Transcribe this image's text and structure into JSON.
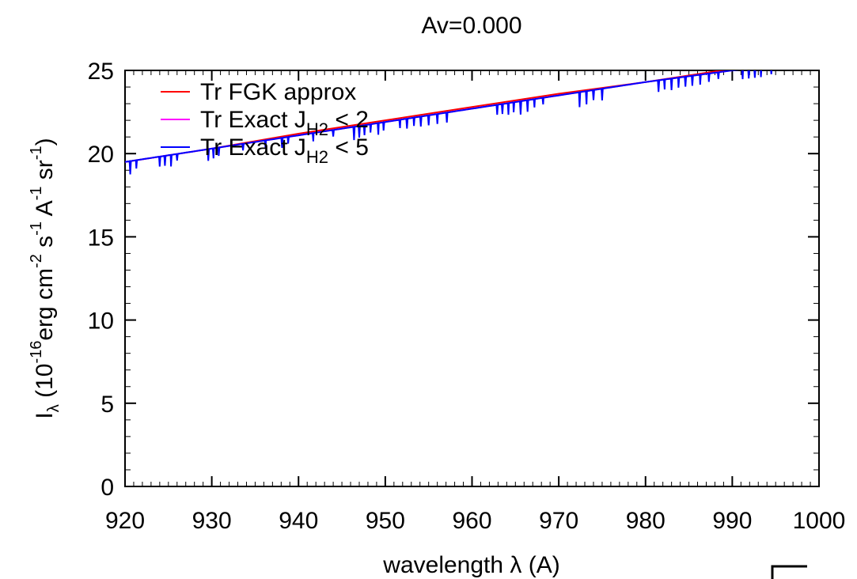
{
  "chart_data": {
    "type": "line",
    "title": "Av=0.000",
    "xlabel": "wavelength λ (A)",
    "ylabel": {
      "main": "I",
      "sub": "λ",
      "text1": " (10",
      "sup1": "-16",
      "text2": "erg cm",
      "sup2": "-2",
      "text3": " s",
      "sup3": "-1",
      "text4": " A",
      "sup4": "-1",
      "text5": " sr",
      "sup5": "-1",
      "text6": ")"
    },
    "xlim": [
      920,
      1000
    ],
    "ylim": [
      0,
      25
    ],
    "xticks": [
      "920",
      "930",
      "940",
      "950",
      "960",
      "970",
      "980",
      "990",
      "1000"
    ],
    "yticks": [
      "0",
      "5",
      "10",
      "15",
      "20",
      "25"
    ],
    "legend_position": "top-left",
    "grid": false,
    "series": [
      {
        "name": "Tr FGK approx",
        "legend": {
          "main": "Tr FGK approx"
        },
        "color": "#ff0000",
        "x": [
          920,
          930,
          940,
          950,
          960,
          970,
          980,
          990,
          995
        ],
        "y": [
          19.5,
          20.3,
          21.2,
          22.0,
          22.8,
          23.6,
          24.3,
          25.1,
          25.4
        ]
      },
      {
        "name": "Tr Exact J_H2 < 2",
        "legend": {
          "main": "Tr Exact J",
          "sub": "H2",
          "tail": "< 2"
        },
        "color": "#ff00ff",
        "x": [
          920,
          930,
          940,
          950,
          960,
          970,
          980,
          990,
          995
        ],
        "y": [
          19.5,
          20.3,
          21.1,
          21.9,
          22.7,
          23.5,
          24.3,
          25.0,
          25.3
        ]
      },
      {
        "name": "Tr Exact J_H2 < 5",
        "legend": {
          "main": "Tr Exact J",
          "sub": "H2",
          "tail": "< 5"
        },
        "color": "#0000ff",
        "x": [
          920,
          930,
          940,
          950,
          960,
          970,
          980,
          990,
          995
        ],
        "y": [
          19.5,
          20.3,
          21.1,
          21.9,
          22.7,
          23.5,
          24.3,
          25.0,
          25.3
        ],
        "absorption_lines": [
          {
            "x": 920.6,
            "depth": 0.8
          },
          {
            "x": 921.3,
            "depth": 0.5
          },
          {
            "x": 924.0,
            "depth": 0.6
          },
          {
            "x": 924.6,
            "depth": 0.6
          },
          {
            "x": 925.3,
            "depth": 0.7
          },
          {
            "x": 926.0,
            "depth": 0.4
          },
          {
            "x": 929.6,
            "depth": 0.7
          },
          {
            "x": 930.2,
            "depth": 0.6
          },
          {
            "x": 930.8,
            "depth": 0.5
          },
          {
            "x": 933.6,
            "depth": 0.4
          },
          {
            "x": 936.2,
            "depth": 0.5
          },
          {
            "x": 938.1,
            "depth": 0.6
          },
          {
            "x": 938.8,
            "depth": 0.4
          },
          {
            "x": 941.7,
            "depth": 0.5
          },
          {
            "x": 944.0,
            "depth": 0.4
          },
          {
            "x": 946.4,
            "depth": 0.8
          },
          {
            "x": 947.0,
            "depth": 0.7
          },
          {
            "x": 947.6,
            "depth": 0.6
          },
          {
            "x": 948.3,
            "depth": 0.5
          },
          {
            "x": 949.2,
            "depth": 0.7
          },
          {
            "x": 949.8,
            "depth": 0.5
          },
          {
            "x": 951.7,
            "depth": 0.5
          },
          {
            "x": 952.5,
            "depth": 0.6
          },
          {
            "x": 953.3,
            "depth": 0.5
          },
          {
            "x": 954.1,
            "depth": 0.6
          },
          {
            "x": 955.0,
            "depth": 0.6
          },
          {
            "x": 956.0,
            "depth": 0.6
          },
          {
            "x": 957.1,
            "depth": 0.6
          },
          {
            "x": 962.9,
            "depth": 0.6
          },
          {
            "x": 963.5,
            "depth": 0.6
          },
          {
            "x": 964.2,
            "depth": 0.7
          },
          {
            "x": 964.8,
            "depth": 0.6
          },
          {
            "x": 965.6,
            "depth": 0.8
          },
          {
            "x": 966.4,
            "depth": 0.7
          },
          {
            "x": 967.2,
            "depth": 0.5
          },
          {
            "x": 968.2,
            "depth": 0.4
          },
          {
            "x": 972.4,
            "depth": 0.9
          },
          {
            "x": 973.2,
            "depth": 0.8
          },
          {
            "x": 974.0,
            "depth": 0.6
          },
          {
            "x": 975.0,
            "depth": 0.7
          },
          {
            "x": 981.5,
            "depth": 0.7
          },
          {
            "x": 982.2,
            "depth": 0.6
          },
          {
            "x": 983.0,
            "depth": 0.7
          },
          {
            "x": 983.8,
            "depth": 0.6
          },
          {
            "x": 984.6,
            "depth": 0.6
          },
          {
            "x": 985.4,
            "depth": 0.6
          },
          {
            "x": 986.3,
            "depth": 0.6
          },
          {
            "x": 987.3,
            "depth": 0.5
          },
          {
            "x": 988.4,
            "depth": 0.4
          },
          {
            "x": 991.2,
            "depth": 0.6
          },
          {
            "x": 991.9,
            "depth": 0.6
          },
          {
            "x": 992.6,
            "depth": 0.6
          },
          {
            "x": 993.3,
            "depth": 0.6
          },
          {
            "x": 994.5,
            "depth": 0.5
          }
        ]
      }
    ]
  }
}
